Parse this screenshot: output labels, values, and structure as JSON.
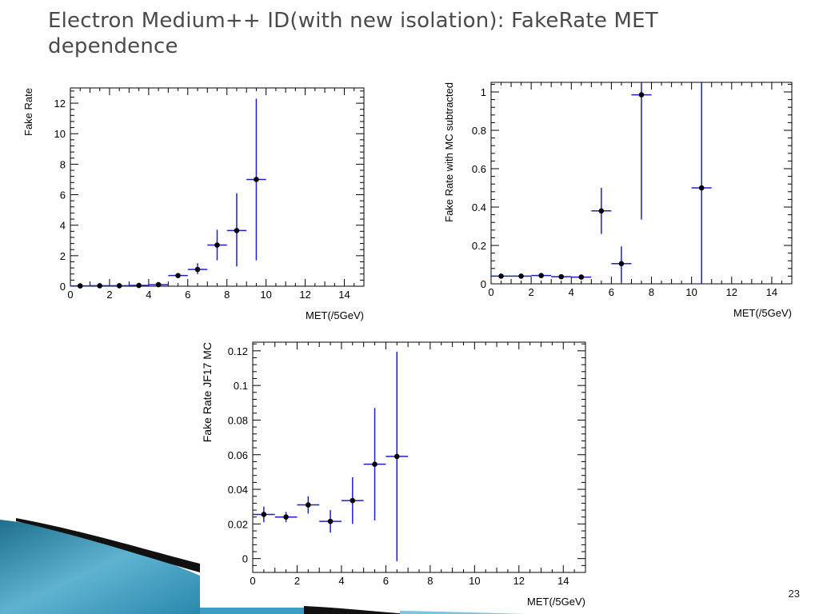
{
  "slide": {
    "title": "Electron Medium++ ID(with new isolation): FakeRate MET dependence",
    "page_number": "23"
  },
  "chart_data": [
    {
      "type": "scatter",
      "xlabel": "MET(/5GeV)",
      "ylabel": "Fake Rate",
      "xlim": [
        0,
        15
      ],
      "ylim": [
        0,
        13
      ],
      "xticks": [
        "0",
        "2",
        "4",
        "6",
        "8",
        "10",
        "12",
        "14"
      ],
      "yticks": [
        "0",
        "2",
        "4",
        "6",
        "8",
        "10",
        "12"
      ],
      "grid": false,
      "series": [
        {
          "points": [
            {
              "x": 0.5,
              "y": 0.02,
              "ylo": 0.0,
              "yhi": 0.05
            },
            {
              "x": 1.5,
              "y": 0.03,
              "ylo": 0.0,
              "yhi": 0.06
            },
            {
              "x": 2.5,
              "y": 0.03,
              "ylo": 0.0,
              "yhi": 0.06
            },
            {
              "x": 3.5,
              "y": 0.05,
              "ylo": 0.0,
              "yhi": 0.1
            },
            {
              "x": 4.5,
              "y": 0.1,
              "ylo": 0.05,
              "yhi": 0.15
            },
            {
              "x": 5.5,
              "y": 0.7,
              "ylo": 0.6,
              "yhi": 0.8
            },
            {
              "x": 6.5,
              "y": 1.1,
              "ylo": 0.8,
              "yhi": 1.5
            },
            {
              "x": 7.5,
              "y": 2.7,
              "ylo": 1.7,
              "yhi": 3.7
            },
            {
              "x": 8.5,
              "y": 3.65,
              "ylo": 1.3,
              "yhi": 6.1
            },
            {
              "x": 9.5,
              "y": 7.0,
              "ylo": 1.7,
              "yhi": 12.3
            }
          ]
        }
      ]
    },
    {
      "type": "scatter",
      "xlabel": "MET(/5GeV)",
      "ylabel": "Fake Rate with MC subtracted",
      "xlim": [
        0,
        15
      ],
      "ylim": [
        0,
        1.05
      ],
      "xticks": [
        "0",
        "2",
        "4",
        "6",
        "8",
        "10",
        "12",
        "14"
      ],
      "yticks": [
        "0",
        "0.2",
        "0.4",
        "0.6",
        "0.8",
        "1"
      ],
      "grid": false,
      "series": [
        {
          "points": [
            {
              "x": 0.5,
              "y": 0.04,
              "ylo": 0.035,
              "yhi": 0.045
            },
            {
              "x": 1.5,
              "y": 0.04,
              "ylo": 0.035,
              "yhi": 0.045
            },
            {
              "x": 2.5,
              "y": 0.043,
              "ylo": 0.037,
              "yhi": 0.05
            },
            {
              "x": 3.5,
              "y": 0.037,
              "ylo": 0.03,
              "yhi": 0.045
            },
            {
              "x": 4.5,
              "y": 0.035,
              "ylo": 0.025,
              "yhi": 0.045
            },
            {
              "x": 5.5,
              "y": 0.38,
              "ylo": 0.26,
              "yhi": 0.5
            },
            {
              "x": 6.5,
              "y": 0.105,
              "ylo": 0.01,
              "yhi": 0.195
            },
            {
              "x": 7.5,
              "y": 0.985,
              "ylo": 0.335,
              "yhi": 1.05
            },
            {
              "x": 10.5,
              "y": 0.5,
              "ylo": 0.0,
              "yhi": 1.05
            }
          ]
        }
      ]
    },
    {
      "type": "scatter",
      "xlabel": "MET(/5GeV)",
      "ylabel": "Fake Rate JF17 MC",
      "xlim": [
        0,
        15
      ],
      "ylim": [
        -0.008,
        0.125
      ],
      "xticks": [
        "0",
        "2",
        "4",
        "6",
        "8",
        "10",
        "12",
        "14"
      ],
      "yticks": [
        "0",
        "0.02",
        "0.04",
        "0.06",
        "0.08",
        "0.1",
        "0.12"
      ],
      "grid": false,
      "series": [
        {
          "points": [
            {
              "x": 0.5,
              "y": 0.0255,
              "ylo": 0.021,
              "yhi": 0.03
            },
            {
              "x": 1.5,
              "y": 0.024,
              "ylo": 0.021,
              "yhi": 0.027
            },
            {
              "x": 2.5,
              "y": 0.031,
              "ylo": 0.026,
              "yhi": 0.036
            },
            {
              "x": 3.5,
              "y": 0.0215,
              "ylo": 0.015,
              "yhi": 0.028
            },
            {
              "x": 4.5,
              "y": 0.0335,
              "ylo": 0.02,
              "yhi": 0.047
            },
            {
              "x": 5.5,
              "y": 0.0545,
              "ylo": 0.022,
              "yhi": 0.087
            },
            {
              "x": 6.5,
              "y": 0.059,
              "ylo": -0.0015,
              "yhi": 0.1195
            }
          ]
        }
      ]
    }
  ],
  "style": {
    "error_bar_color": "#1f1fc8",
    "marker_color": "#000000",
    "title_color": "#4a4a4a"
  }
}
